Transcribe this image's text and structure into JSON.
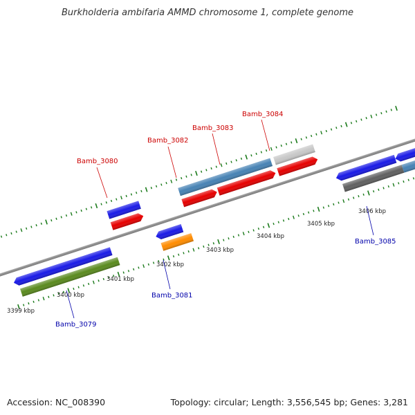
{
  "title": "Burkholderia ambifaria AMMD chromosome 1, complete genome",
  "footer": {
    "accession": "Accession: NC_008390",
    "summary": "Topology: circular; Length: 3,556,545 bp; Genes: 3,281"
  },
  "scale_labels": [
    "3399 kbp",
    "3400 kbp",
    "3401 kbp",
    "3402 kbp",
    "3403 kbp",
    "3404 kbp",
    "3405 kbp",
    "3406 kbp"
  ],
  "gene_labels": {
    "forward": [
      "Bamb_3080",
      "Bamb_3082",
      "Bamb_3083",
      "Bamb_3084"
    ],
    "reverse": [
      "Bamb_3079",
      "Bamb_3081",
      "Bamb_3085"
    ]
  },
  "colors": {
    "backbone": "#8a8a8a",
    "tick": "#1a7a1a",
    "forward_label": "#cc0000",
    "reverse_label": "#0000aa",
    "cds_blue": "#1a1ae6",
    "cds_red": "#e60000",
    "steel_blue": "#4682b4",
    "olive": "#5a8a1e",
    "orange": "#ff8c00",
    "light_gray": "#c8c8c8",
    "dark_gray": "#606060"
  }
}
